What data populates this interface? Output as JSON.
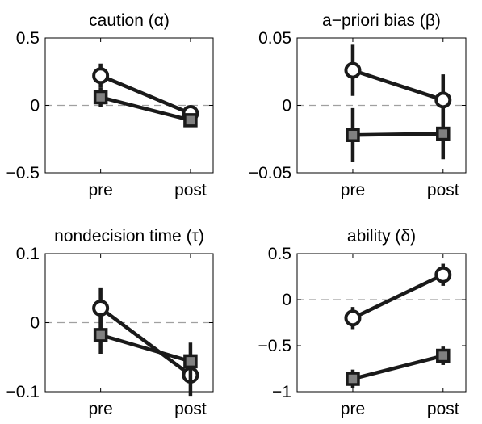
{
  "chart_data": [
    {
      "type": "line",
      "title": "caution (α)",
      "categories": [
        "pre",
        "post"
      ],
      "ylim": [
        -0.5,
        0.5
      ],
      "yticks": [
        0.5,
        0,
        -0.5
      ],
      "ytick_labels": [
        "0.5",
        "0",
        "−0.5"
      ],
      "reference_line": 0,
      "series": [
        {
          "marker": "circle",
          "values": [
            0.22,
            -0.06
          ],
          "errors": [
            0.09,
            0.05
          ]
        },
        {
          "marker": "square",
          "values": [
            0.06,
            -0.11
          ],
          "errors": [
            0.07,
            0.05
          ]
        }
      ]
    },
    {
      "type": "line",
      "title": "a−priori bias (β)",
      "categories": [
        "pre",
        "post"
      ],
      "ylim": [
        -0.05,
        0.05
      ],
      "yticks": [
        0.05,
        0,
        -0.05
      ],
      "ytick_labels": [
        "0.05",
        "0",
        "−0.05"
      ],
      "reference_line": 0,
      "series": [
        {
          "marker": "circle",
          "values": [
            0.026,
            0.004
          ],
          "errors": [
            0.019,
            0.019
          ]
        },
        {
          "marker": "square",
          "values": [
            -0.022,
            -0.021
          ],
          "errors": [
            0.02,
            0.019
          ]
        }
      ]
    },
    {
      "type": "line",
      "title": "nondecision time (τ)",
      "categories": [
        "pre",
        "post"
      ],
      "ylim": [
        -0.1,
        0.1
      ],
      "yticks": [
        0.1,
        0,
        -0.1
      ],
      "ytick_labels": [
        "0.1",
        "0",
        "−0.1"
      ],
      "reference_line": 0,
      "series": [
        {
          "marker": "circle",
          "values": [
            0.021,
            -0.076
          ],
          "errors": [
            0.03,
            0.03
          ]
        },
        {
          "marker": "square",
          "values": [
            -0.018,
            -0.056
          ],
          "errors": [
            0.027,
            0.027
          ]
        }
      ]
    },
    {
      "type": "line",
      "title": "ability (δ)",
      "categories": [
        "pre",
        "post"
      ],
      "ylim": [
        -1,
        0.5
      ],
      "yticks": [
        0.5,
        0,
        -0.5,
        -1
      ],
      "ytick_labels": [
        "0.5",
        "0",
        "−0.5",
        "−1"
      ],
      "reference_line": 0,
      "series": [
        {
          "marker": "circle",
          "values": [
            -0.2,
            0.27
          ],
          "errors": [
            0.12,
            0.12
          ]
        },
        {
          "marker": "square",
          "values": [
            -0.86,
            -0.61
          ],
          "errors": [
            0.1,
            0.1
          ]
        }
      ]
    }
  ],
  "colors": {
    "line": "#1a1a1a",
    "circle_fill": "#ffffff",
    "square_fill": "#808080",
    "zero_line": "#a0a0a0",
    "axis": "#000000"
  }
}
